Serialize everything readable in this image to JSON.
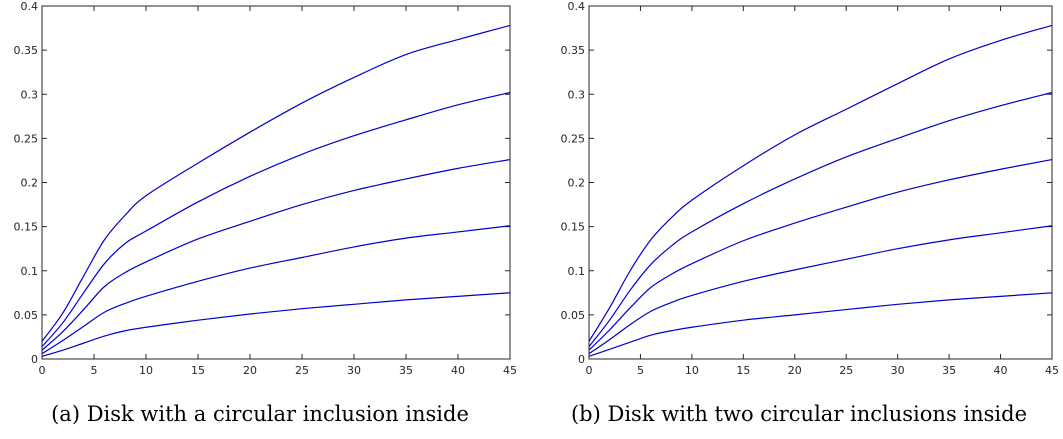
{
  "chart_data": [
    {
      "type": "line",
      "caption": "(a) Disk with a circular inclusion inside",
      "xlim": [
        0,
        45
      ],
      "ylim": [
        0,
        0.4
      ],
      "xticks": [
        0,
        5,
        10,
        15,
        20,
        25,
        30,
        35,
        40,
        45
      ],
      "xtick_labels": [
        "0",
        "5",
        "10",
        "15",
        "20",
        "25",
        "30",
        "35",
        "40",
        "45"
      ],
      "yticks": [
        0,
        0.05,
        0.1,
        0.15,
        0.2,
        0.25,
        0.3,
        0.35,
        0.4
      ],
      "ytick_labels": [
        "0",
        "0.05",
        "0.1",
        "0.15",
        "0.2",
        "0.25",
        "0.3",
        "0.35",
        "0.4"
      ],
      "grid": false,
      "line_color": "#0000cc",
      "x": [
        0,
        2,
        4,
        6,
        8,
        10,
        15,
        20,
        25,
        30,
        35,
        40,
        45
      ],
      "series": [
        {
          "values": [
            0.003,
            0.01,
            0.018,
            0.026,
            0.032,
            0.036,
            0.044,
            0.051,
            0.057,
            0.062,
            0.067,
            0.071,
            0.075
          ]
        },
        {
          "values": [
            0.006,
            0.021,
            0.037,
            0.053,
            0.063,
            0.071,
            0.088,
            0.103,
            0.115,
            0.127,
            0.137,
            0.144,
            0.151
          ]
        },
        {
          "values": [
            0.01,
            0.031,
            0.056,
            0.082,
            0.098,
            0.11,
            0.136,
            0.156,
            0.175,
            0.191,
            0.204,
            0.216,
            0.226
          ]
        },
        {
          "values": [
            0.014,
            0.041,
            0.075,
            0.108,
            0.131,
            0.145,
            0.178,
            0.207,
            0.232,
            0.253,
            0.271,
            0.288,
            0.302
          ]
        },
        {
          "values": [
            0.02,
            0.052,
            0.094,
            0.135,
            0.163,
            0.185,
            0.222,
            0.257,
            0.29,
            0.319,
            0.345,
            0.362,
            0.378
          ]
        }
      ]
    },
    {
      "type": "line",
      "caption": "(b) Disk with two circular inclusions inside",
      "xlim": [
        0,
        45
      ],
      "ylim": [
        0,
        0.4
      ],
      "xticks": [
        0,
        5,
        10,
        15,
        20,
        25,
        30,
        35,
        40,
        45
      ],
      "xtick_labels": [
        "0",
        "5",
        "10",
        "15",
        "20",
        "25",
        "30",
        "35",
        "40",
        "45"
      ],
      "yticks": [
        0,
        0.05,
        0.1,
        0.15,
        0.2,
        0.25,
        0.3,
        0.35,
        0.4
      ],
      "ytick_labels": [
        "0",
        "0.05",
        "0.1",
        "0.15",
        "0.2",
        "0.25",
        "0.3",
        "0.35",
        "0.4"
      ],
      "grid": false,
      "line_color": "#0000cc",
      "x": [
        0,
        2,
        4,
        6,
        8,
        10,
        15,
        20,
        25,
        30,
        35,
        40,
        45
      ],
      "series": [
        {
          "values": [
            0.003,
            0.011,
            0.019,
            0.027,
            0.032,
            0.036,
            0.044,
            0.05,
            0.056,
            0.062,
            0.067,
            0.071,
            0.075
          ]
        },
        {
          "values": [
            0.006,
            0.022,
            0.039,
            0.054,
            0.064,
            0.072,
            0.088,
            0.101,
            0.113,
            0.125,
            0.135,
            0.143,
            0.151
          ]
        },
        {
          "values": [
            0.01,
            0.033,
            0.058,
            0.081,
            0.096,
            0.108,
            0.134,
            0.154,
            0.172,
            0.189,
            0.203,
            0.215,
            0.226
          ]
        },
        {
          "values": [
            0.014,
            0.044,
            0.078,
            0.107,
            0.128,
            0.144,
            0.176,
            0.204,
            0.229,
            0.25,
            0.27,
            0.287,
            0.302
          ]
        },
        {
          "values": [
            0.02,
            0.058,
            0.1,
            0.135,
            0.16,
            0.18,
            0.219,
            0.254,
            0.283,
            0.312,
            0.34,
            0.361,
            0.378
          ]
        }
      ]
    }
  ]
}
